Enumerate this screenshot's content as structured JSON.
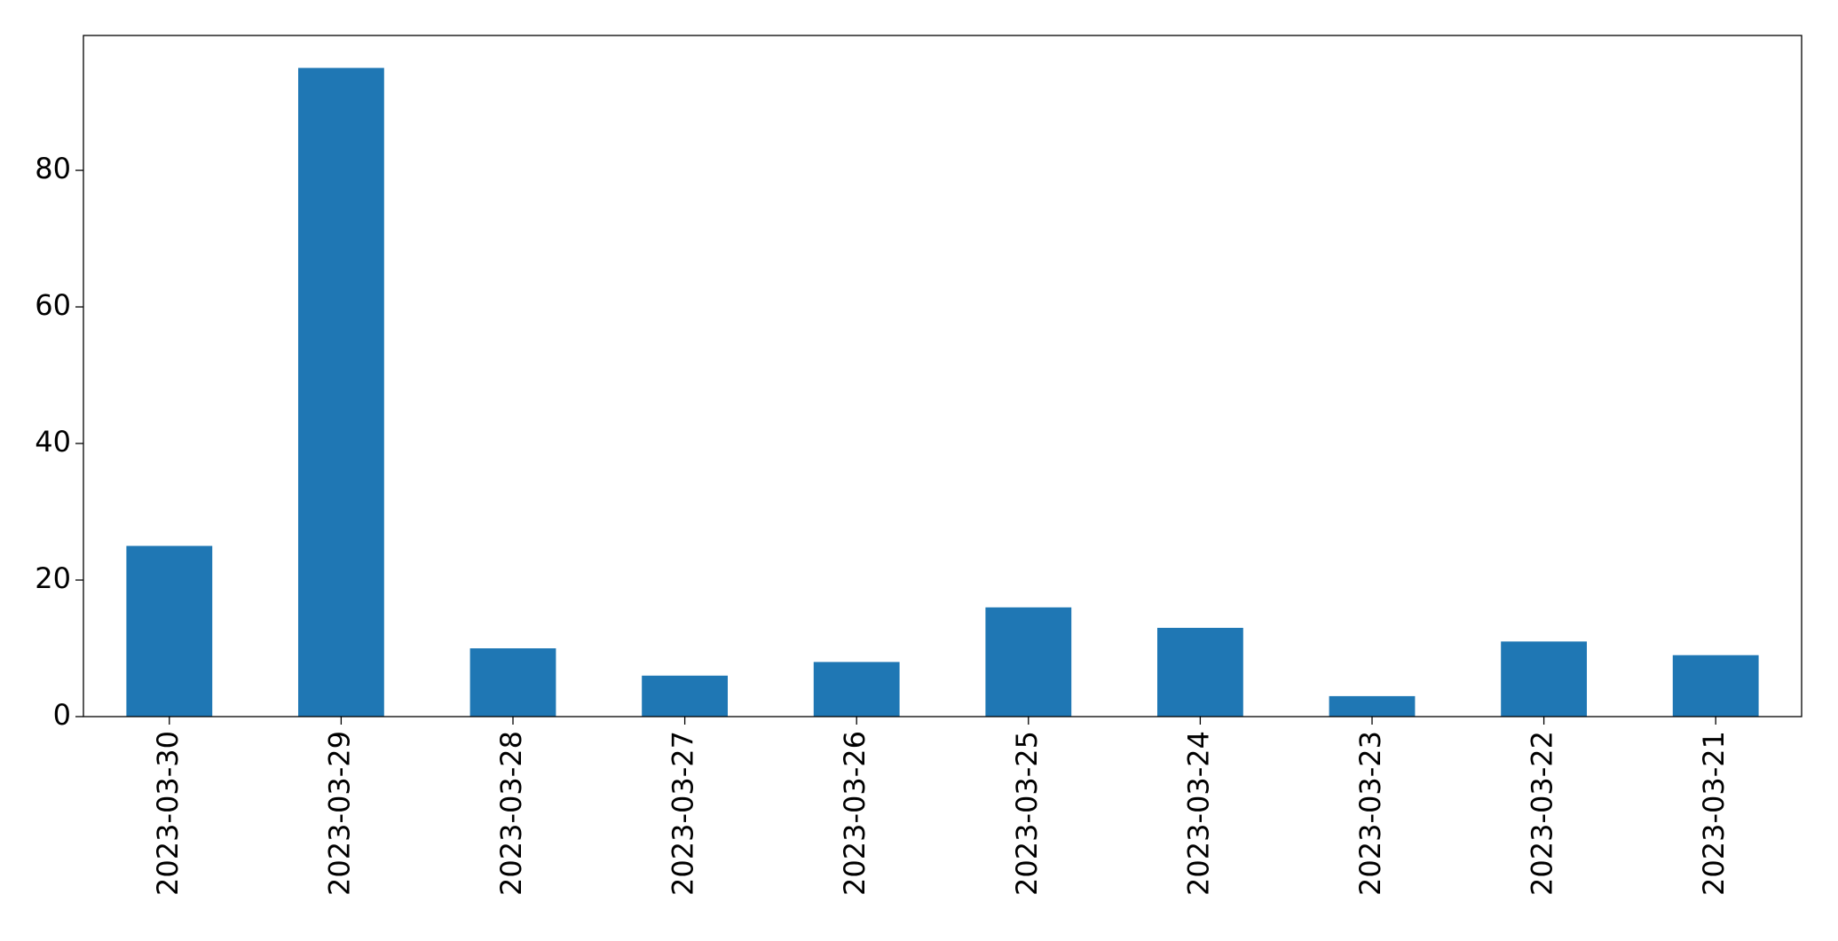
{
  "chart_data": {
    "type": "bar",
    "categories": [
      "2023-03-30",
      "2023-03-29",
      "2023-03-28",
      "2023-03-27",
      "2023-03-26",
      "2023-03-25",
      "2023-03-24",
      "2023-03-23",
      "2023-03-22",
      "2023-03-21"
    ],
    "values": [
      25,
      95,
      10,
      6,
      8,
      16,
      13,
      3,
      11,
      9
    ],
    "color": "#1f77b4",
    "ylim": [
      0,
      99.75
    ],
    "yticks": [
      0,
      20,
      40,
      60,
      80
    ],
    "grid": false
  }
}
